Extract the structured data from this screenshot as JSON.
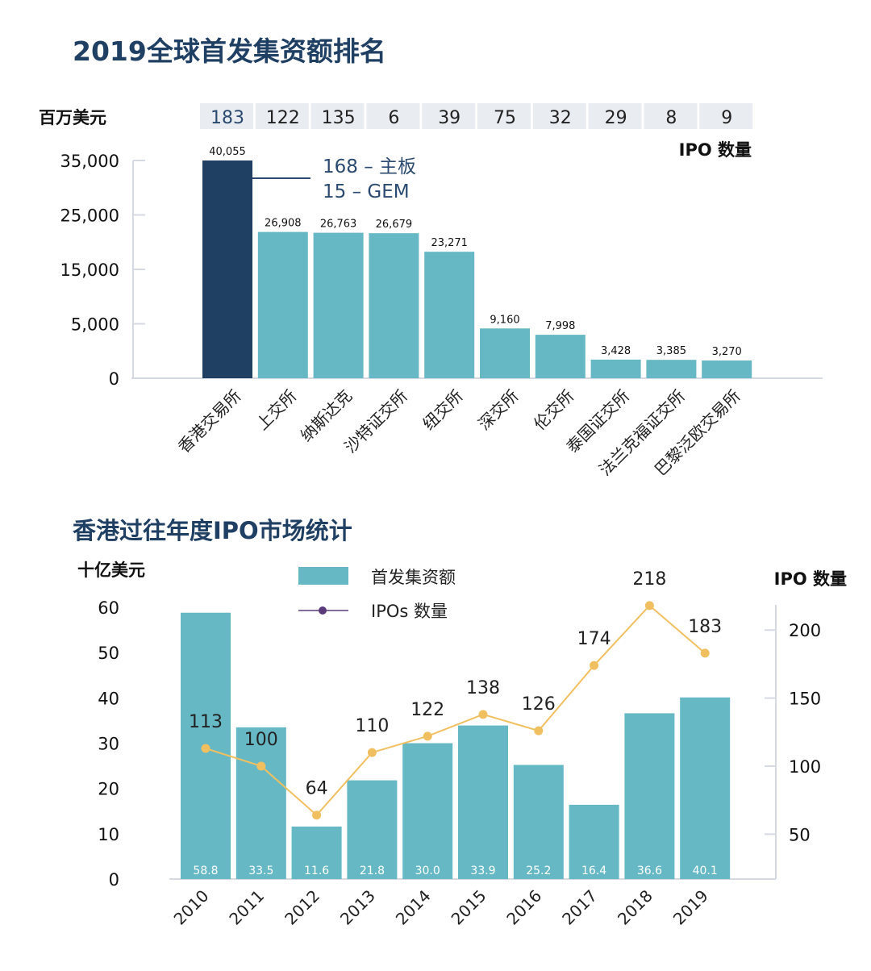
{
  "colors": {
    "title": "#1f3f63",
    "highlight_bar": "#1f3f63",
    "bar": "#66b8c4",
    "count_box": "#e9edf2",
    "line": "#f0c060",
    "legend_marker": "#5a3a7a",
    "axis": "#d5dae2",
    "text": "#111111"
  },
  "chart_data": [
    {
      "type": "bar",
      "title": "2019全球首发集资额排名",
      "ylabel": "百万美元",
      "count_label": "IPO 数量",
      "categories": [
        "香港交易所",
        "上交所",
        "纳斯达克",
        "沙特证交所",
        "纽交所",
        "深交所",
        "伦交所",
        "泰国证交所",
        "法兰克福证交所",
        "巴黎泛欧交易所"
      ],
      "values": [
        40055,
        26908,
        26763,
        26679,
        23271,
        9160,
        7998,
        3428,
        3385,
        3270
      ],
      "value_labels": [
        "40,055",
        "26,908",
        "26,763",
        "26,679",
        "23,271",
        "9,160",
        "7,998",
        "3,428",
        "3,385",
        "3,270"
      ],
      "ipo_counts": [
        "183",
        "122",
        "135",
        "6",
        "39",
        "75",
        "32",
        "29",
        "8",
        "9"
      ],
      "yticks": [
        "0",
        "5,000",
        "15,000",
        "25,000",
        "35,000"
      ],
      "ylim": [
        0,
        40055
      ],
      "highlight_index": 0,
      "annotations": [
        "168 – 主板",
        "15 – GEM"
      ],
      "grid": false
    },
    {
      "type": "bar+line",
      "title": "香港过往年度IPO市场统计",
      "ylabel_left": "十亿美元",
      "ylabel_right": "IPO 数量",
      "categories": [
        "2010",
        "2011",
        "2012",
        "2013",
        "2014",
        "2015",
        "2016",
        "2017",
        "2018",
        "2019"
      ],
      "series": [
        {
          "name": "首发集资额",
          "type": "bar",
          "axis": "left",
          "values": [
            58.8,
            33.5,
            11.6,
            21.8,
            30.0,
            33.9,
            25.2,
            16.4,
            36.6,
            40.1
          ],
          "labels": [
            "58.8",
            "33.5",
            "11.6",
            "21.8",
            "30.0",
            "33.9",
            "25.2",
            "16.4",
            "36.6",
            "40.1"
          ]
        },
        {
          "name": "IPOs 数量",
          "type": "line",
          "axis": "right",
          "values": [
            113,
            100,
            64,
            110,
            122,
            138,
            126,
            174,
            218,
            183
          ]
        }
      ],
      "yticks_left": [
        "0",
        "10",
        "20",
        "30",
        "40",
        "50",
        "60"
      ],
      "ylim_left": [
        0,
        60
      ],
      "yticks_right": [
        "50",
        "100",
        "150",
        "200"
      ],
      "ylim_right": [
        17,
        218.5
      ],
      "legend_position": "top-center",
      "grid": false
    }
  ]
}
